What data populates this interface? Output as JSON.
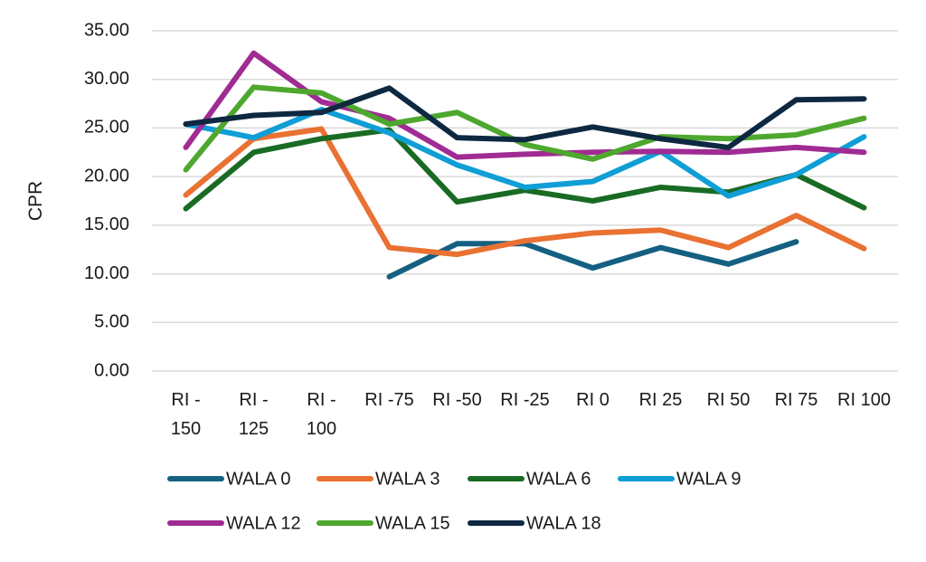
{
  "chart_data": {
    "type": "line",
    "title": "",
    "xlabel": "",
    "ylabel": "CPR",
    "ylim": [
      0,
      35
    ],
    "yticks": [
      "0.00",
      "5.00",
      "10.00",
      "15.00",
      "20.00",
      "25.00",
      "30.00",
      "35.00"
    ],
    "grid": true,
    "legend_position": "bottom",
    "categories": [
      "RI -150",
      "RI -125",
      "RI -100",
      "RI -75",
      "RI -50",
      "RI -25",
      "RI 0",
      "RI 25",
      "RI 50",
      "RI 75",
      "RI 100"
    ],
    "category_labels": [
      [
        "RI -",
        "150"
      ],
      [
        "RI -",
        "125"
      ],
      [
        "RI -",
        "100"
      ],
      [
        "RI -75"
      ],
      [
        "RI -50"
      ],
      [
        "RI -25"
      ],
      [
        "RI 0"
      ],
      [
        "RI 25"
      ],
      [
        "RI 50"
      ],
      [
        "RI 75"
      ],
      [
        "RI 100"
      ]
    ],
    "series": [
      {
        "name": "WALA 0",
        "color": "#156082",
        "values": [
          null,
          null,
          null,
          9.7,
          13.1,
          13.1,
          10.6,
          12.7,
          11.0,
          13.3,
          null
        ]
      },
      {
        "name": "WALA 3",
        "color": "#E97132",
        "values": [
          18.1,
          23.9,
          24.9,
          12.7,
          12.0,
          13.4,
          14.2,
          14.5,
          12.7,
          16.0,
          12.6
        ]
      },
      {
        "name": "WALA 6",
        "color": "#196B24",
        "values": [
          16.7,
          22.5,
          23.9,
          24.8,
          17.4,
          18.6,
          17.5,
          18.9,
          18.4,
          20.2,
          16.8
        ]
      },
      {
        "name": "WALA 9",
        "color": "#0F9ED5",
        "values": [
          25.4,
          24.0,
          26.9,
          24.5,
          21.2,
          18.9,
          19.5,
          22.6,
          18.0,
          20.2,
          24.1
        ]
      },
      {
        "name": "WALA 12",
        "color": "#A02B93",
        "values": [
          23.0,
          32.7,
          27.7,
          26.0,
          22.0,
          22.3,
          22.5,
          22.6,
          22.5,
          23.0,
          22.5
        ]
      },
      {
        "name": "WALA 15",
        "color": "#4EA72E",
        "values": [
          20.7,
          29.2,
          28.6,
          25.4,
          26.6,
          23.3,
          21.8,
          24.1,
          23.9,
          24.3,
          26.0
        ]
      },
      {
        "name": "WALA 18",
        "color": "#0E2841",
        "values": [
          25.4,
          26.3,
          26.6,
          29.1,
          24.0,
          23.8,
          25.1,
          23.9,
          23.0,
          27.9,
          28.0
        ]
      }
    ]
  }
}
